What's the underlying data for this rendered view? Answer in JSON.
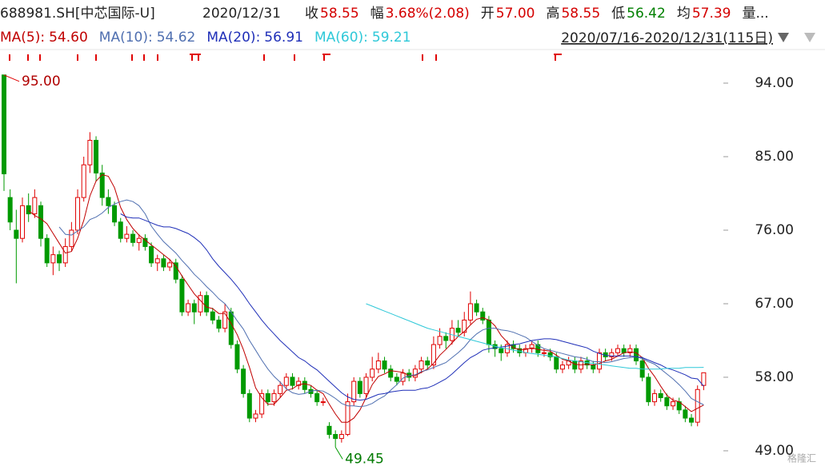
{
  "chart_data": {
    "type": "candlestick",
    "title": "688981.SH[中芯国际-U]",
    "date": "2020/12/31",
    "quote": [
      {
        "label": "收",
        "value": "58.55",
        "color": "#d40000"
      },
      {
        "label": "幅",
        "value": "3.68%(2.08)",
        "color": "#d40000"
      },
      {
        "label": "开",
        "value": "57.00",
        "color": "#d40000"
      },
      {
        "label": "高",
        "value": "58.55",
        "color": "#d40000"
      },
      {
        "label": "低",
        "value": "56.42",
        "color": "#008000"
      },
      {
        "label": "均",
        "value": "57.39",
        "color": "#d40000"
      },
      {
        "label": "量...",
        "value": "",
        "color": "#222"
      }
    ],
    "range": "2020/07/16-2020/12/31(115日)",
    "watermark": "格隆汇",
    "up_color": "#e00000",
    "down_color": "#009a00",
    "ylim": [
      47.43,
      98.11
    ],
    "yticks": [
      {
        "value": 94,
        "label": "94.00"
      },
      {
        "value": 85,
        "label": "85.00"
      },
      {
        "value": 76,
        "label": "76.00"
      },
      {
        "value": 67,
        "label": "67.00"
      },
      {
        "value": 58,
        "label": "58.00"
      },
      {
        "value": 49,
        "label": "49.00"
      }
    ],
    "high_label": {
      "value": 95,
      "label": "95.00"
    },
    "low_label": {
      "value": 49.45,
      "label": "49.45"
    },
    "candles": [
      [
        95,
        95,
        80.8,
        82.9
      ],
      [
        80,
        81,
        76,
        77
      ],
      [
        76,
        78.5,
        69.5,
        75
      ],
      [
        75,
        80,
        74.5,
        79
      ],
      [
        79,
        80.5,
        77,
        78
      ],
      [
        78,
        81,
        77.5,
        80
      ],
      [
        79,
        79.5,
        74,
        75
      ],
      [
        75,
        75.5,
        71.5,
        72
      ],
      [
        72,
        74,
        70.5,
        73
      ],
      [
        73,
        73.5,
        71,
        72
      ],
      [
        72,
        75,
        71.5,
        74
      ],
      [
        74,
        77,
        73.5,
        76
      ],
      [
        76,
        81,
        75.5,
        80
      ],
      [
        80,
        85,
        79.5,
        84
      ],
      [
        84,
        88,
        83,
        87
      ],
      [
        87,
        87.5,
        82,
        83
      ],
      [
        83,
        84,
        79,
        80
      ],
      [
        80,
        81,
        78,
        79
      ],
      [
        79,
        79.5,
        76.5,
        77
      ],
      [
        77,
        77.5,
        74.5,
        75
      ],
      [
        75,
        76.5,
        74.5,
        75.5
      ],
      [
        75.5,
        76,
        74,
        74.5
      ],
      [
        74.5,
        75.5,
        73.5,
        75
      ],
      [
        75,
        75.5,
        73.5,
        74
      ],
      [
        74,
        74.5,
        71.5,
        72
      ],
      [
        72,
        73,
        71,
        72.5
      ],
      [
        72.5,
        73,
        71,
        71.5
      ],
      [
        71.5,
        72.5,
        71,
        72
      ],
      [
        72,
        72.5,
        69.5,
        70
      ],
      [
        70,
        70.5,
        65.5,
        66
      ],
      [
        66,
        67.5,
        65.5,
        67
      ],
      [
        67,
        67.5,
        64.5,
        66
      ],
      [
        66,
        68.5,
        65.5,
        68
      ],
      [
        68,
        68.5,
        65.5,
        66
      ],
      [
        66,
        66.5,
        64.5,
        65
      ],
      [
        65,
        65.5,
        63.5,
        64
      ],
      [
        64,
        67,
        63.5,
        66
      ],
      [
        66,
        66.5,
        61.5,
        62
      ],
      [
        62,
        62.5,
        58.5,
        59
      ],
      [
        59,
        59.5,
        55.5,
        56
      ],
      [
        56,
        56.5,
        52.5,
        53
      ],
      [
        53,
        54,
        52.5,
        53.5
      ],
      [
        53.5,
        56.5,
        53,
        56
      ],
      [
        56,
        56.5,
        54.5,
        55
      ],
      [
        55,
        56.5,
        54.5,
        56
      ],
      [
        56,
        57.5,
        55.5,
        57
      ],
      [
        57,
        58.5,
        56.5,
        58
      ],
      [
        58,
        58.5,
        56.5,
        57
      ],
      [
        57,
        58,
        56.5,
        57.5
      ],
      [
        57.5,
        58,
        56,
        56.5
      ],
      [
        56.5,
        57,
        55.5,
        56
      ],
      [
        56,
        56.5,
        54.5,
        55
      ],
      [
        55,
        55.5,
        54.5,
        55
      ],
      [
        52,
        52.5,
        50.5,
        51
      ],
      [
        51,
        51.5,
        49.45,
        50.5
      ],
      [
        50.5,
        51.5,
        50,
        51
      ],
      [
        51,
        56,
        50.8,
        55
      ],
      [
        55,
        58,
        54.5,
        57.5
      ],
      [
        57.5,
        58,
        55.5,
        56
      ],
      [
        56,
        58.5,
        55.5,
        58
      ],
      [
        58,
        60.5,
        57.5,
        59
      ],
      [
        59,
        61,
        58.5,
        60
      ],
      [
        60,
        60.5,
        58.5,
        59
      ],
      [
        59,
        59.5,
        57.5,
        58
      ],
      [
        58,
        58.5,
        57,
        57.5
      ],
      [
        57.5,
        59,
        57,
        58.5
      ],
      [
        58.5,
        59,
        57.5,
        58
      ],
      [
        58,
        59.5,
        57.5,
        59
      ],
      [
        59,
        60.5,
        58.5,
        60
      ],
      [
        60,
        60.5,
        59,
        59.5
      ],
      [
        59.5,
        63,
        59,
        62
      ],
      [
        62,
        64,
        61.5,
        63
      ],
      [
        63,
        63.5,
        61.5,
        62.5
      ],
      [
        62.5,
        65,
        62,
        64
      ],
      [
        64,
        65,
        63,
        63.5
      ],
      [
        63.5,
        66,
        63,
        65
      ],
      [
        65,
        68.5,
        64.5,
        67
      ],
      [
        67,
        67.5,
        65.5,
        66
      ],
      [
        66,
        66.5,
        64.5,
        65
      ],
      [
        65,
        65.5,
        61,
        62
      ],
      [
        62,
        62.5,
        60.5,
        61.5
      ],
      [
        61.5,
        62,
        60,
        61
      ],
      [
        61,
        62.5,
        60.5,
        62
      ],
      [
        62,
        62.5,
        61,
        61.5
      ],
      [
        61.5,
        62,
        60.5,
        61
      ],
      [
        61,
        62,
        60.5,
        61.5
      ],
      [
        61.5,
        62.5,
        61,
        62
      ],
      [
        62,
        62.5,
        60.5,
        61
      ],
      [
        61,
        61.5,
        60.5,
        61
      ],
      [
        61,
        61.5,
        60,
        60.5
      ],
      [
        60.5,
        61,
        58.5,
        59
      ],
      [
        59,
        60,
        58.5,
        59.5
      ],
      [
        59.5,
        60.5,
        59,
        60
      ],
      [
        60,
        60.5,
        58.5,
        59
      ],
      [
        59,
        60.5,
        58.5,
        60
      ],
      [
        60,
        60.5,
        59,
        59.5
      ],
      [
        59.5,
        60,
        58.5,
        59
      ],
      [
        59,
        61.5,
        58.5,
        61
      ],
      [
        61,
        61.5,
        60,
        60.5
      ],
      [
        60.5,
        61.5,
        60,
        61
      ],
      [
        61,
        62,
        60.5,
        61.5
      ],
      [
        61.5,
        62,
        60.5,
        61
      ],
      [
        61,
        62,
        60.5,
        61.5
      ],
      [
        61.5,
        62,
        59.5,
        60
      ],
      [
        60,
        60.5,
        57.5,
        58
      ],
      [
        58,
        58.5,
        54.5,
        55
      ],
      [
        55,
        56.5,
        54.5,
        56
      ],
      [
        56,
        56.5,
        55,
        55.5
      ],
      [
        55.5,
        56,
        54,
        54.5
      ],
      [
        54.5,
        55.5,
        54,
        55
      ],
      [
        55,
        55.5,
        53.5,
        54
      ],
      [
        54,
        54.5,
        52.5,
        53
      ],
      [
        53,
        53.5,
        52,
        52.5
      ],
      [
        52.5,
        57,
        52,
        56.5
      ],
      [
        57,
        58.55,
        56.42,
        58.55
      ]
    ],
    "series": [
      {
        "name": "MA(5):",
        "value_label": "54.60",
        "color": "#c00000",
        "values": [
          null,
          null,
          null,
          null,
          78.4,
          77.8,
          77.4,
          76.8,
          75.6,
          74.4,
          73.2,
          73.4,
          75,
          77.2,
          80.2,
          82,
          82.8,
          82.6,
          81.2,
          78.8,
          77.3,
          76.2,
          75.4,
          74.8,
          74.2,
          73.6,
          73,
          72.4,
          71.6,
          70.4,
          69.3,
          68.2,
          67.4,
          66.6,
          66.4,
          65.8,
          65.8,
          64.6,
          63.2,
          61.4,
          59.2,
          56.7,
          55.5,
          54.7,
          54.7,
          55.5,
          56.4,
          56.6,
          57.1,
          57.2,
          57,
          56.4,
          56,
          54.7,
          53.5,
          52.5,
          52.5,
          53,
          54,
          55.5,
          57.1,
          58.1,
          58.4,
          58.8,
          58.7,
          58.6,
          58.2,
          58.2,
          58.6,
          59,
          59.7,
          60.7,
          61.4,
          62.2,
          63,
          63.6,
          64.4,
          65.1,
          65.3,
          65,
          64.3,
          63.1,
          62.3,
          61.6,
          61.4,
          61.4,
          61.6,
          61.4,
          61.3,
          61.2,
          60.7,
          60.2,
          60,
          59.6,
          59.5,
          59.6,
          59.5,
          59.7,
          60,
          60.2,
          60.6,
          61,
          61.1,
          61,
          60.4,
          59.1,
          58.1,
          56.9,
          55.8,
          55.2,
          55,
          54.4,
          53.8,
          54.2,
          54.6
        ]
      },
      {
        "name": "MA(10):",
        "value_label": "54.62",
        "color": "#4f6fb0",
        "values": [
          null,
          null,
          null,
          null,
          null,
          null,
          null,
          null,
          null,
          76.4,
          75.5,
          75.4,
          75.9,
          76.4,
          77.3,
          77.6,
          78.1,
          78.8,
          79.2,
          79.5,
          79.7,
          79.5,
          79,
          78,
          76.5,
          75.5,
          74.6,
          73.9,
          73.2,
          72.3,
          71.5,
          70.6,
          69.9,
          69.1,
          68.4,
          67.6,
          67,
          66,
          64.9,
          63.9,
          62.5,
          61.3,
          60.1,
          59,
          58.1,
          57.4,
          56.6,
          56.1,
          55.9,
          56,
          56.3,
          56.4,
          56.3,
          55.9,
          55.4,
          54.8,
          54.5,
          54.5,
          54.4,
          54.5,
          54.8,
          55.3,
          55.7,
          56.4,
          57.1,
          57.9,
          58.2,
          58.3,
          58.7,
          58.9,
          59.2,
          59.5,
          59.8,
          60.4,
          61,
          61.7,
          62.6,
          63.3,
          63.8,
          64,
          64,
          63.8,
          63.7,
          63.5,
          63.2,
          62.9,
          62.4,
          61.9,
          61.5,
          61.3,
          61.1,
          60.9,
          60.7,
          60.5,
          60.4,
          60.2,
          59.9,
          59.9,
          59.8,
          59.9,
          60.1,
          60.3,
          60.4,
          60.5,
          60.3,
          59.9,
          59.6,
          59,
          58.4,
          57.8,
          57.1,
          56.3,
          55.4,
          55,
          54.62
        ]
      },
      {
        "name": "MA(20):",
        "value_label": "56.91",
        "color": "#1f2fb8",
        "values": [
          null,
          null,
          null,
          null,
          null,
          null,
          null,
          null,
          null,
          null,
          null,
          null,
          null,
          null,
          null,
          null,
          null,
          null,
          null,
          78,
          77.6,
          77.5,
          77.5,
          77.2,
          76.9,
          76.6,
          76.4,
          76.4,
          76.2,
          75.9,
          75.6,
          75.1,
          74.5,
          73.6,
          72.5,
          71.6,
          70.8,
          70,
          69.1,
          68.1,
          67,
          66,
          65,
          64.1,
          63.3,
          62.5,
          61.8,
          61.1,
          60.4,
          60,
          59.4,
          58.9,
          58.2,
          57.5,
          56.8,
          56.1,
          55.6,
          55.3,
          55.2,
          55.3,
          55.6,
          55.9,
          56,
          56.2,
          56.3,
          56.4,
          56.4,
          56.4,
          56.6,
          56.7,
          57,
          57.4,
          57.8,
          58.4,
          59.1,
          59.8,
          60.4,
          60.8,
          61.3,
          61.5,
          61.6,
          61.7,
          61.8,
          62,
          62.1,
          62.3,
          62.5,
          62.6,
          62.7,
          62.7,
          62.6,
          62.4,
          62.2,
          62,
          61.8,
          61.6,
          61.2,
          60.9,
          60.7,
          60.6,
          60.6,
          60.6,
          60.6,
          60.5,
          60.4,
          60.1,
          59.8,
          59.5,
          59.1,
          58.9,
          58.6,
          58.3,
          57.9,
          57.8,
          56.91
        ]
      },
      {
        "name": "MA(60):",
        "value_label": "59.21",
        "color": "#2ec8d8",
        "values": [
          null,
          null,
          null,
          null,
          null,
          null,
          null,
          null,
          null,
          null,
          null,
          null,
          null,
          null,
          null,
          null,
          null,
          null,
          null,
          null,
          null,
          null,
          null,
          null,
          null,
          null,
          null,
          null,
          null,
          null,
          null,
          null,
          null,
          null,
          null,
          null,
          null,
          null,
          null,
          null,
          null,
          null,
          null,
          null,
          null,
          null,
          null,
          null,
          null,
          null,
          null,
          null,
          null,
          null,
          null,
          null,
          null,
          null,
          null,
          67,
          66.7,
          66.4,
          66.1,
          65.8,
          65.5,
          65.2,
          64.9,
          64.6,
          64.3,
          64,
          63.8,
          63.6,
          63.4,
          63.2,
          63,
          62.8,
          62.6,
          62.4,
          62.2,
          62,
          61.8,
          61.6,
          61.5,
          61.3,
          61.2,
          61,
          60.9,
          60.8,
          60.7,
          60.6,
          60.5,
          60.3,
          60.1,
          60,
          59.9,
          59.8,
          59.7,
          59.6,
          59.5,
          59.4,
          59.3,
          59.2,
          59.1,
          59.1,
          59,
          59,
          59,
          59,
          59.1,
          59.1,
          59.1,
          59.2,
          59.2,
          59.2,
          59.21
        ]
      }
    ]
  }
}
